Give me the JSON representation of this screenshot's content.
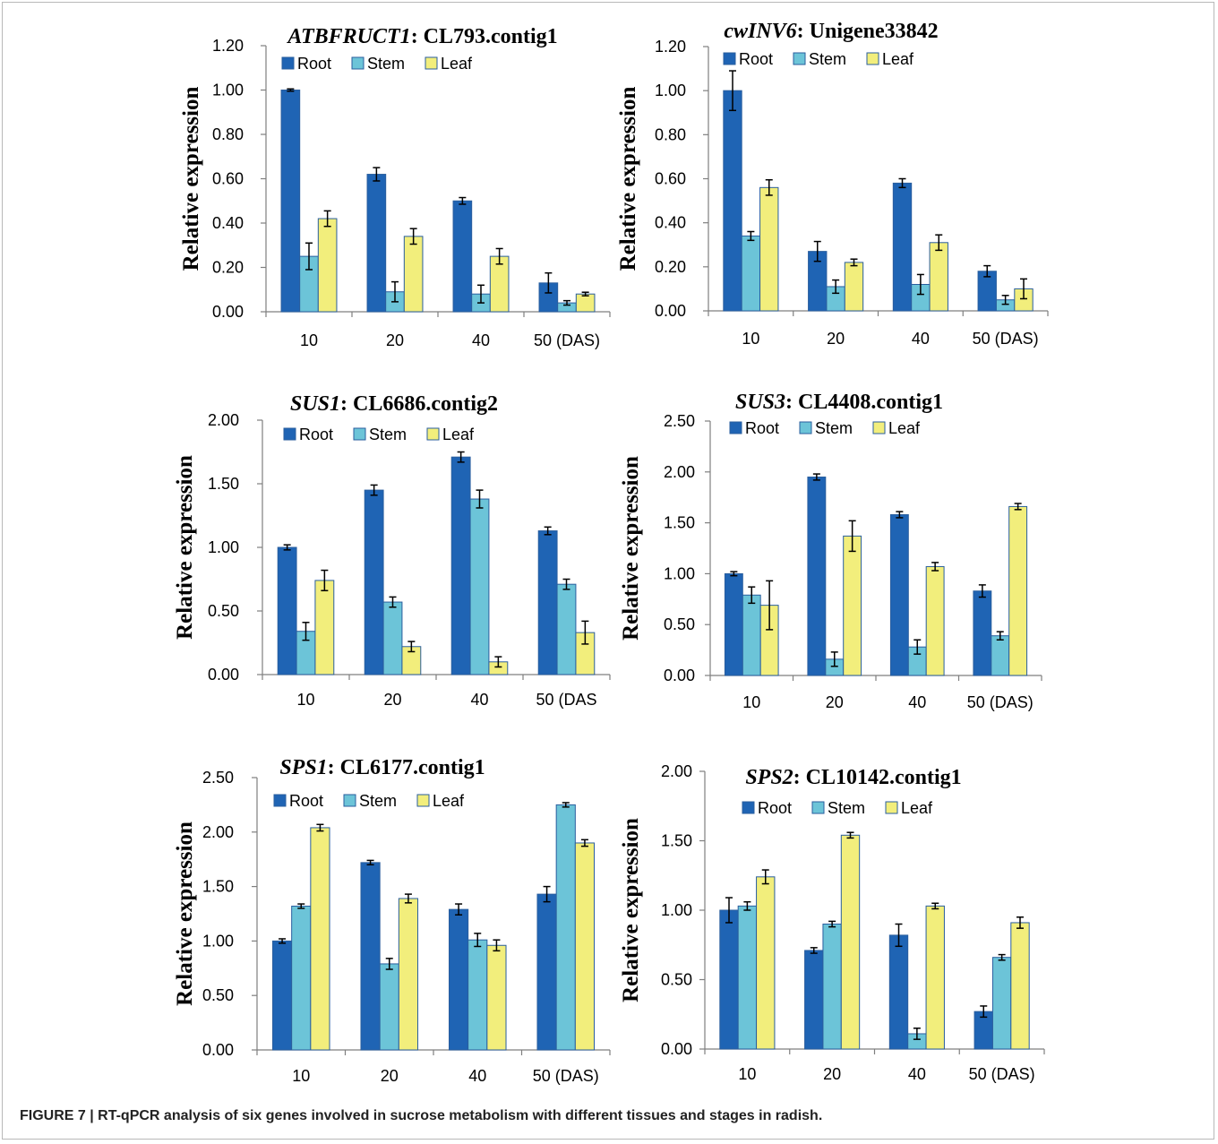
{
  "colors": {
    "root": "#1F64B4",
    "stem": "#6CC4D8",
    "leaf": "#F2EE7C",
    "edge": "#2A5E9E"
  },
  "caption": "FIGURE 7 | RT-qPCR analysis of six genes involved in sucrose metabolism with different tissues and stages in radish.",
  "chart_data": [
    {
      "type": "bar",
      "title_gene": "ATBFRUCT1",
      "title_rest": ": CL793.contig1",
      "ylabel": "Relative expression",
      "categories": [
        "10",
        "20",
        "40",
        "50 (DAS)"
      ],
      "ylim": [
        0,
        1.2
      ],
      "yticks": [
        "0.00",
        "0.20",
        "0.40",
        "0.60",
        "0.80",
        "1.00",
        "1.20"
      ],
      "legend_placement": "top-left",
      "series": [
        {
          "name": "Root",
          "values": [
            1.0,
            0.62,
            0.5,
            0.13
          ],
          "errors": [
            0.005,
            0.03,
            0.015,
            0.045
          ]
        },
        {
          "name": "Stem",
          "values": [
            0.25,
            0.09,
            0.08,
            0.04
          ],
          "errors": [
            0.06,
            0.045,
            0.04,
            0.01
          ]
        },
        {
          "name": "Leaf",
          "values": [
            0.42,
            0.34,
            0.25,
            0.08
          ],
          "errors": [
            0.035,
            0.035,
            0.035,
            0.008
          ]
        }
      ]
    },
    {
      "type": "bar",
      "title_gene": "cwINV6",
      "title_rest": ": Unigene33842",
      "ylabel": "Relative expression",
      "categories": [
        "10",
        "20",
        "40",
        "50 (DAS)"
      ],
      "ylim": [
        0,
        1.2
      ],
      "yticks": [
        "0.00",
        "0.20",
        "0.40",
        "0.60",
        "0.80",
        "1.00",
        "1.20"
      ],
      "legend_placement": "top-left",
      "series": [
        {
          "name": "Root",
          "values": [
            1.0,
            0.27,
            0.58,
            0.18
          ],
          "errors": [
            0.09,
            0.045,
            0.02,
            0.025
          ]
        },
        {
          "name": "Stem",
          "values": [
            0.34,
            0.11,
            0.12,
            0.05
          ],
          "errors": [
            0.02,
            0.03,
            0.045,
            0.02
          ]
        },
        {
          "name": "Leaf",
          "values": [
            0.56,
            0.22,
            0.31,
            0.1
          ],
          "errors": [
            0.035,
            0.015,
            0.035,
            0.045
          ]
        }
      ]
    },
    {
      "type": "bar",
      "title_gene": "SUS1",
      "title_rest": ": CL6686.contig2",
      "ylabel": "Relative expression",
      "categories": [
        "10",
        "20",
        "40",
        "50 (DAS"
      ],
      "ylim": [
        0,
        2.0
      ],
      "yticks": [
        "0.00",
        "0.50",
        "1.00",
        "1.50",
        "2.00"
      ],
      "legend_placement": "top-left",
      "series": [
        {
          "name": "Root",
          "values": [
            1.0,
            1.45,
            1.71,
            1.13
          ],
          "errors": [
            0.02,
            0.04,
            0.04,
            0.03
          ]
        },
        {
          "name": "Stem",
          "values": [
            0.34,
            0.57,
            1.38,
            0.71
          ],
          "errors": [
            0.07,
            0.04,
            0.07,
            0.04
          ]
        },
        {
          "name": "Leaf",
          "values": [
            0.74,
            0.22,
            0.1,
            0.33
          ],
          "errors": [
            0.08,
            0.04,
            0.04,
            0.09
          ]
        }
      ]
    },
    {
      "type": "bar",
      "title_gene": "SUS3",
      "title_rest": ": CL4408.contig1",
      "ylabel": "Relative expression",
      "categories": [
        "10",
        "20",
        "40",
        "50 (DAS)"
      ],
      "ylim": [
        0,
        2.5
      ],
      "yticks": [
        "0.00",
        "0.50",
        "1.00",
        "1.50",
        "2.00",
        "2.50"
      ],
      "legend_placement": "top-left",
      "series": [
        {
          "name": "Root",
          "values": [
            1.0,
            1.95,
            1.58,
            0.83
          ],
          "errors": [
            0.02,
            0.03,
            0.03,
            0.06
          ]
        },
        {
          "name": "Stem",
          "values": [
            0.79,
            0.16,
            0.28,
            0.39
          ],
          "errors": [
            0.08,
            0.07,
            0.07,
            0.04
          ]
        },
        {
          "name": "Leaf",
          "values": [
            0.69,
            1.37,
            1.07,
            1.66
          ],
          "errors": [
            0.24,
            0.15,
            0.04,
            0.03
          ]
        }
      ]
    },
    {
      "type": "bar",
      "title_gene": "SPS1",
      "title_rest": ": CL6177.contig1",
      "ylabel": "Relative expression",
      "categories": [
        "10",
        "20",
        "40",
        "50 (DAS)"
      ],
      "ylim": [
        0,
        2.5
      ],
      "yticks": [
        "0.00",
        "0.50",
        "1.00",
        "1.50",
        "2.00",
        "2.50"
      ],
      "legend_placement": "top-left",
      "series": [
        {
          "name": "Root",
          "values": [
            1.0,
            1.72,
            1.29,
            1.43
          ],
          "errors": [
            0.02,
            0.02,
            0.05,
            0.07
          ]
        },
        {
          "name": "Stem",
          "values": [
            1.32,
            0.79,
            1.01,
            2.25
          ],
          "errors": [
            0.02,
            0.05,
            0.06,
            0.02
          ]
        },
        {
          "name": "Leaf",
          "values": [
            2.04,
            1.39,
            0.96,
            1.9
          ],
          "errors": [
            0.03,
            0.04,
            0.05,
            0.03
          ]
        }
      ]
    },
    {
      "type": "bar",
      "title_gene": "SPS2",
      "title_rest": ": CL10142.contig1",
      "ylabel": "Relative expression",
      "categories": [
        "10",
        "20",
        "40",
        "50 (DAS)"
      ],
      "ylim": [
        0,
        2.0
      ],
      "yticks": [
        "0.00",
        "0.50",
        "1.00",
        "1.50",
        "2.00"
      ],
      "legend_placement": "top-left",
      "series": [
        {
          "name": "Root",
          "values": [
            1.0,
            0.71,
            0.82,
            0.27
          ],
          "errors": [
            0.09,
            0.02,
            0.08,
            0.04
          ]
        },
        {
          "name": "Stem",
          "values": [
            1.03,
            0.9,
            0.11,
            0.66
          ],
          "errors": [
            0.03,
            0.02,
            0.04,
            0.02
          ]
        },
        {
          "name": "Leaf",
          "values": [
            1.24,
            1.54,
            1.03,
            0.91
          ],
          "errors": [
            0.05,
            0.02,
            0.02,
            0.04
          ]
        }
      ]
    }
  ]
}
